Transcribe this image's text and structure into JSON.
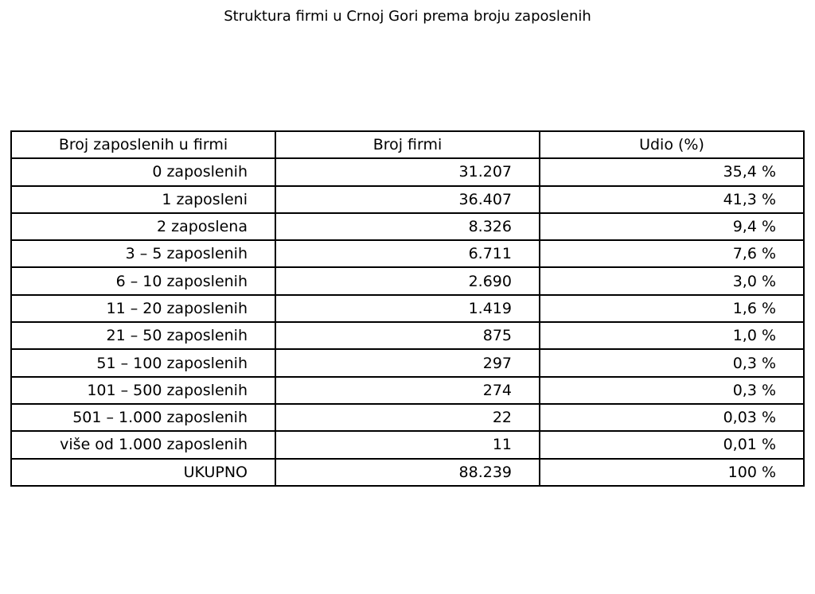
{
  "title": "Struktura firmi u Crnoj Gori prema broju zaposlenih",
  "colors": {
    "text": "#000000",
    "border": "#000000",
    "background": "#ffffff"
  },
  "chart_data": {
    "type": "table",
    "title": "Struktura firmi u Crnoj Gori prema broju zaposlenih",
    "columns": [
      "Broj zaposlenih u firmi",
      "Broj firmi",
      "Udio (%)"
    ],
    "rows": [
      [
        "0 zaposlenih",
        "31.207",
        "35,4 %"
      ],
      [
        "1 zaposleni",
        "36.407",
        "41,3 %"
      ],
      [
        "2 zaposlena",
        "8.326",
        "9,4 %"
      ],
      [
        "3 – 5 zaposlenih",
        "6.711",
        "7,6 %"
      ],
      [
        "6 – 10 zaposlenih",
        "2.690",
        "3,0 %"
      ],
      [
        "11 – 20 zaposlenih",
        "1.419",
        "1,6 %"
      ],
      [
        "21 – 50 zaposlenih",
        "875",
        "1,0 %"
      ],
      [
        "51 – 100 zaposlenih",
        "297",
        "0,3 %"
      ],
      [
        "101 – 500 zaposlenih",
        "274",
        "0,3 %"
      ],
      [
        "501 – 1.000 zaposlenih",
        "22",
        "0,03 %"
      ],
      [
        "više od 1.000 zaposlenih",
        "11",
        "0,01 %"
      ],
      [
        "UKUPNO",
        "88.239",
        "100 %"
      ]
    ]
  }
}
